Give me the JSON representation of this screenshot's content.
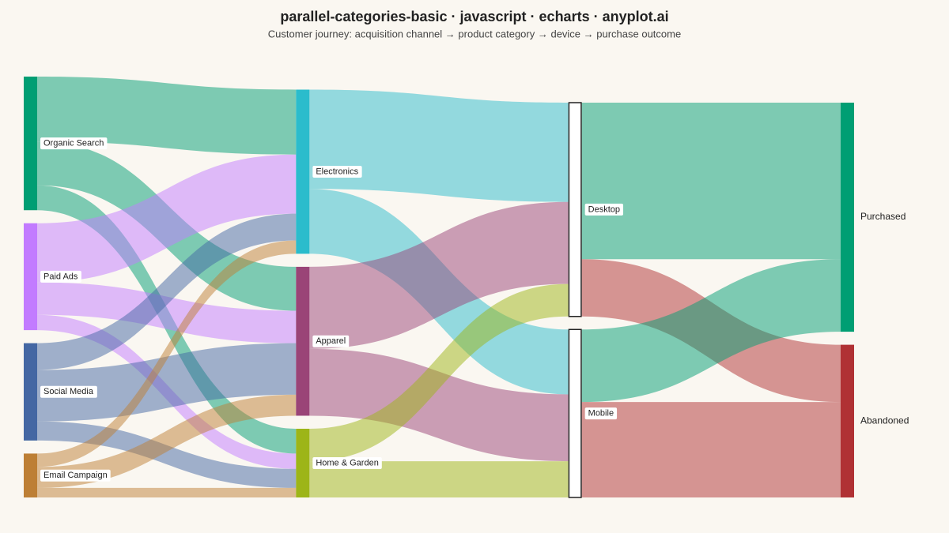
{
  "chart_data": {
    "type": "sankey",
    "title": "parallel-categories-basic · javascript · echarts · anyplot.ai",
    "subtitle": "Customer journey: acquisition channel → product category → device → purchase outcome",
    "link_opacity": 0.5,
    "nodes": [
      {
        "name": "Organic Search",
        "color": "#009e73"
      },
      {
        "name": "Paid Ads",
        "color": "#c27bff"
      },
      {
        "name": "Social Media",
        "color": "#4467a3"
      },
      {
        "name": "Email Campaign",
        "color": "#bd7f35"
      },
      {
        "name": "Electronics",
        "color": "#2bbccc"
      },
      {
        "name": "Apparel",
        "color": "#9a4477"
      },
      {
        "name": "Home & Garden",
        "color": "#9db518"
      },
      {
        "name": "Desktop",
        "color": "#ffffff",
        "borderColor": "#222222"
      },
      {
        "name": "Mobile",
        "color": "#ffffff",
        "borderColor": "#222222"
      },
      {
        "name": "Purchased",
        "color": "#009e73"
      },
      {
        "name": "Abandoned",
        "color": "#b03134"
      }
    ],
    "links": [
      {
        "source": "Organic Search",
        "target": "Electronics",
        "value": 170,
        "color": "#009e73"
      },
      {
        "source": "Organic Search",
        "target": "Apparel",
        "value": 115,
        "color": "#009e73"
      },
      {
        "source": "Organic Search",
        "target": "Home & Garden",
        "value": 65,
        "color": "#009e73"
      },
      {
        "source": "Paid Ads",
        "target": "Electronics",
        "value": 155,
        "color": "#c27bff"
      },
      {
        "source": "Paid Ads",
        "target": "Apparel",
        "value": 85,
        "color": "#c27bff"
      },
      {
        "source": "Paid Ads",
        "target": "Home & Garden",
        "value": 40,
        "color": "#c27bff"
      },
      {
        "source": "Social Media",
        "target": "Electronics",
        "value": 70,
        "color": "#4467a3"
      },
      {
        "source": "Social Media",
        "target": "Apparel",
        "value": 135,
        "color": "#4467a3"
      },
      {
        "source": "Social Media",
        "target": "Home & Garden",
        "value": 50,
        "color": "#4467a3"
      },
      {
        "source": "Email Campaign",
        "target": "Electronics",
        "value": 35,
        "color": "#bd7f35"
      },
      {
        "source": "Email Campaign",
        "target": "Apparel",
        "value": 55,
        "color": "#bd7f35"
      },
      {
        "source": "Email Campaign",
        "target": "Home & Garden",
        "value": 25,
        "color": "#bd7f35"
      },
      {
        "source": "Electronics",
        "target": "Desktop",
        "value": 260,
        "color": "#2bbccc"
      },
      {
        "source": "Electronics",
        "target": "Mobile",
        "value": 170,
        "color": "#2bbccc"
      },
      {
        "source": "Apparel",
        "target": "Desktop",
        "value": 215,
        "color": "#9a4477"
      },
      {
        "source": "Apparel",
        "target": "Mobile",
        "value": 175,
        "color": "#9a4477"
      },
      {
        "source": "Home & Garden",
        "target": "Desktop",
        "value": 85,
        "color": "#9db518"
      },
      {
        "source": "Home & Garden",
        "target": "Mobile",
        "value": 95,
        "color": "#9db518"
      },
      {
        "source": "Desktop",
        "target": "Purchased",
        "value": 410,
        "color": "#009e73"
      },
      {
        "source": "Desktop",
        "target": "Abandoned",
        "value": 150,
        "color": "#b03134"
      },
      {
        "source": "Mobile",
        "target": "Purchased",
        "value": 190,
        "color": "#009e73"
      },
      {
        "source": "Mobile",
        "target": "Abandoned",
        "value": 250,
        "color": "#b03134"
      }
    ]
  }
}
